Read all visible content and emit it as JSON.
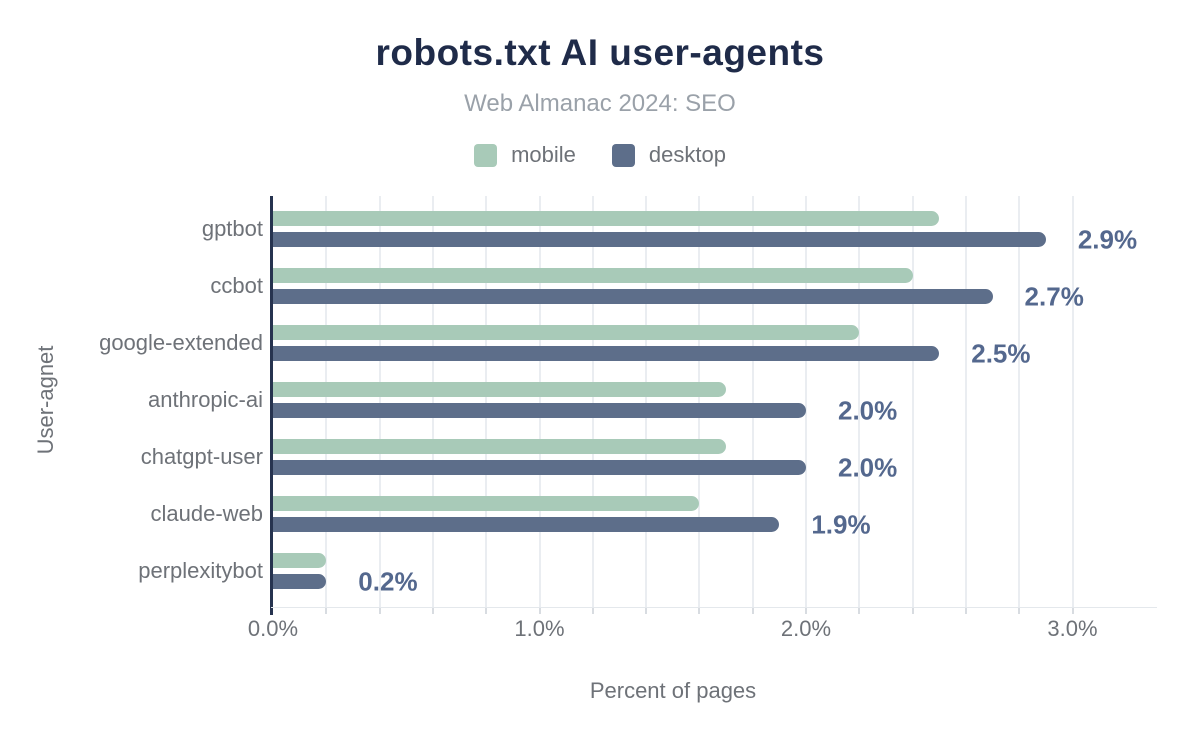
{
  "title": "robots.txt AI user-agents",
  "subtitle": "Web Almanac 2024: SEO",
  "legend": [
    {
      "label": "mobile",
      "color": "#a8cab8"
    },
    {
      "label": "desktop",
      "color": "#5d6e8a"
    }
  ],
  "chart_data": {
    "type": "bar",
    "orientation": "horizontal",
    "title": "robots.txt AI user-agents",
    "subtitle": "Web Almanac 2024: SEO",
    "categories": [
      "gptbot",
      "ccbot",
      "google-extended",
      "anthropic-ai",
      "chatgpt-user",
      "claude-web",
      "perplexitybot"
    ],
    "series": [
      {
        "name": "mobile",
        "color": "#a8cab8",
        "values": [
          2.5,
          2.4,
          2.2,
          1.7,
          1.7,
          1.6,
          0.2
        ]
      },
      {
        "name": "desktop",
        "color": "#5d6e8a",
        "values": [
          2.9,
          2.7,
          2.5,
          2.0,
          2.0,
          1.9,
          0.2
        ]
      }
    ],
    "annotations": [
      "2.9%",
      "2.7%",
      "2.5%",
      "2.0%",
      "2.0%",
      "1.9%",
      "0.2%"
    ],
    "xlabel": "Percent of pages",
    "ylabel": "User-agnet",
    "x_ticks": [
      {
        "value": 0,
        "label": "0.0%"
      },
      {
        "value": 1,
        "label": "1.0%"
      },
      {
        "value": 2,
        "label": "2.0%"
      },
      {
        "value": 3,
        "label": "3.0%"
      }
    ],
    "xlim": [
      0,
      3.3
    ],
    "grid_step": 0.2,
    "grid_max": 3.0,
    "grid": true,
    "legend_position": "top"
  },
  "colors": {
    "title": "#1f2b49",
    "subtitle": "#9aa1a9",
    "text": "#6e7278",
    "mobile": "#a8cab8",
    "desktop": "#5d6e8a",
    "annotation": "#54688e",
    "grid": "#eaedf1",
    "axis": "#26334f",
    "tick": "#d8dce1",
    "baseline": "#e4e8ec",
    "background": "#ffffff"
  }
}
